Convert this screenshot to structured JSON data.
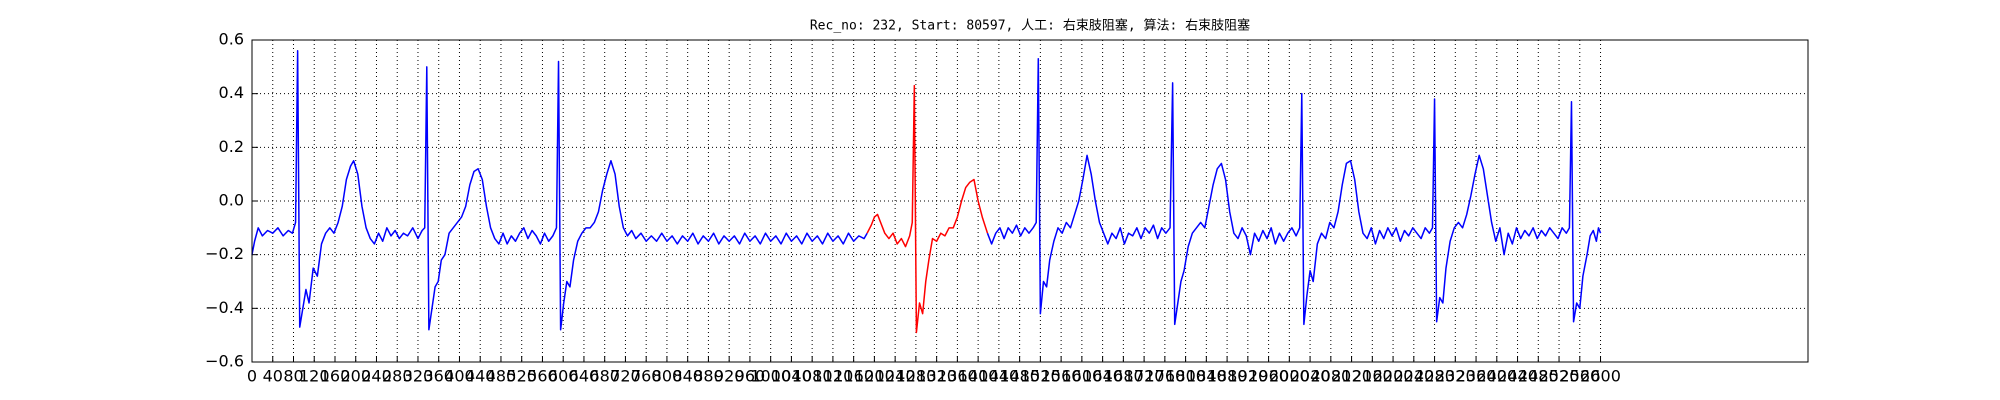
{
  "chart_data": {
    "type": "line",
    "title": "Rec_no: 232, Start: 80597, 人工: 右束肢阻塞, 算法: 右束肢阻塞",
    "xlim": [
      0,
      3000
    ],
    "xticks": [
      0,
      40,
      80,
      120,
      160,
      200,
      240,
      280,
      320,
      360,
      400,
      440,
      480,
      520,
      560,
      600,
      640,
      680,
      720,
      760,
      800,
      840,
      880,
      920,
      960,
      1000,
      1040,
      1080,
      1120,
      1160,
      1200,
      1240,
      1280,
      1320,
      1360,
      1400,
      1440,
      1480,
      1520,
      1560,
      1600,
      1640,
      1680,
      1720,
      1760,
      1800,
      1840,
      1880,
      1920,
      1960,
      2000,
      2040,
      2080,
      2120,
      2160,
      2200,
      2240,
      2280,
      2320,
      2360,
      2400,
      2440,
      2480,
      2520,
      2560,
      2600
    ],
    "ylim": [
      -0.6,
      0.6
    ],
    "yticks": [
      {
        "value": -0.6,
        "label": "−0.6"
      },
      {
        "value": -0.4,
        "label": "−0.4"
      },
      {
        "value": -0.2,
        "label": "−0.2"
      },
      {
        "value": 0,
        "label": "0.0"
      },
      0.2,
      0.4,
      0.6
    ],
    "grid": true,
    "series": [
      {
        "color": "#0000ff",
        "x": [
          0,
          5,
          12,
          20,
          30,
          40,
          50,
          60,
          70,
          78,
          84,
          88,
          92,
          98,
          104,
          110,
          118,
          126,
          134,
          142,
          150,
          158,
          166,
          174,
          182,
          190,
          196,
          204,
          212,
          220,
          228,
          236,
          244,
          252,
          260,
          268,
          276,
          284,
          292,
          300,
          310,
          320,
          328,
          333,
          337,
          341,
          347,
          353,
          359,
          365,
          372,
          380,
          388,
          396,
          404,
          412,
          420,
          428,
          436,
          444,
          452,
          460,
          468,
          476,
          484,
          492,
          500,
          508,
          516,
          524,
          532,
          540,
          548,
          556,
          564,
          572,
          580,
          587,
          591,
          595,
          601,
          607,
          613,
          620,
          628,
          636,
          644,
          652,
          660,
          668,
          676,
          684,
          692,
          700,
          708,
          716,
          724,
          732,
          740,
          750,
          760,
          770,
          780,
          790,
          800,
          810,
          820,
          830,
          840,
          850,
          860,
          870,
          880,
          890,
          900,
          910,
          920,
          930,
          940,
          950,
          960,
          970,
          980,
          990,
          1000,
          1010,
          1020,
          1030,
          1040,
          1050,
          1060,
          1070,
          1080,
          1090,
          1100,
          1110,
          1120,
          1130,
          1140,
          1150,
          1160,
          1170,
          1180,
          1186
        ],
        "values": [
          -0.2,
          -0.15,
          -0.1,
          -0.13,
          -0.11,
          -0.12,
          -0.1,
          -0.13,
          -0.11,
          -0.12,
          -0.08,
          0.56,
          -0.47,
          -0.4,
          -0.33,
          -0.38,
          -0.25,
          -0.28,
          -0.16,
          -0.12,
          -0.1,
          -0.12,
          -0.08,
          -0.02,
          0.08,
          0.13,
          0.15,
          0.1,
          -0.02,
          -0.1,
          -0.14,
          -0.16,
          -0.12,
          -0.15,
          -0.1,
          -0.13,
          -0.11,
          -0.14,
          -0.12,
          -0.13,
          -0.1,
          -0.14,
          -0.11,
          -0.1,
          0.5,
          -0.48,
          -0.4,
          -0.32,
          -0.3,
          -0.22,
          -0.2,
          -0.12,
          -0.1,
          -0.08,
          -0.06,
          -0.02,
          0.06,
          0.11,
          0.12,
          0.08,
          -0.02,
          -0.1,
          -0.14,
          -0.16,
          -0.12,
          -0.16,
          -0.13,
          -0.15,
          -0.12,
          -0.1,
          -0.14,
          -0.11,
          -0.13,
          -0.16,
          -0.12,
          -0.15,
          -0.13,
          -0.1,
          0.52,
          -0.48,
          -0.38,
          -0.3,
          -0.32,
          -0.22,
          -0.15,
          -0.12,
          -0.1,
          -0.1,
          -0.08,
          -0.04,
          0.04,
          0.1,
          0.15,
          0.1,
          -0.02,
          -0.1,
          -0.13,
          -0.11,
          -0.14,
          -0.12,
          -0.15,
          -0.13,
          -0.15,
          -0.12,
          -0.15,
          -0.13,
          -0.16,
          -0.13,
          -0.15,
          -0.12,
          -0.16,
          -0.13,
          -0.15,
          -0.12,
          -0.16,
          -0.13,
          -0.15,
          -0.13,
          -0.16,
          -0.12,
          -0.15,
          -0.13,
          -0.16,
          -0.12,
          -0.15,
          -0.13,
          -0.16,
          -0.12,
          -0.15,
          -0.13,
          -0.16,
          -0.12,
          -0.15,
          -0.13,
          -0.16,
          -0.12,
          -0.15,
          -0.13,
          -0.16,
          -0.12,
          -0.15,
          -0.13,
          -0.14,
          -0.12
        ]
      },
      {
        "color": "#ff0000",
        "x": [
          1186,
          1194,
          1200,
          1206,
          1212,
          1220,
          1228,
          1236,
          1244,
          1252,
          1260,
          1268,
          1273,
          1277,
          1281,
          1287,
          1293,
          1299,
          1305,
          1312,
          1320,
          1328,
          1336,
          1344,
          1352,
          1360,
          1368,
          1376,
          1384,
          1392,
          1400,
          1408,
          1418
        ],
        "values": [
          -0.12,
          -0.09,
          -0.06,
          -0.05,
          -0.08,
          -0.12,
          -0.14,
          -0.12,
          -0.16,
          -0.14,
          -0.17,
          -0.13,
          -0.08,
          0.43,
          -0.49,
          -0.38,
          -0.42,
          -0.3,
          -0.22,
          -0.14,
          -0.15,
          -0.12,
          -0.13,
          -0.1,
          -0.1,
          -0.06,
          0.0,
          0.05,
          0.07,
          0.08,
          0.0,
          -0.06,
          -0.12
        ]
      },
      {
        "color": "#0000ff",
        "x": [
          1418,
          1426,
          1434,
          1442,
          1450,
          1458,
          1466,
          1474,
          1482,
          1490,
          1498,
          1506,
          1512,
          1516,
          1520,
          1526,
          1532,
          1538,
          1546,
          1554,
          1562,
          1570,
          1578,
          1586,
          1594,
          1602,
          1610,
          1618,
          1626,
          1634,
          1642,
          1650,
          1658,
          1666,
          1674,
          1682,
          1690,
          1698,
          1706,
          1714,
          1722,
          1730,
          1738,
          1746,
          1754,
          1762,
          1770,
          1775,
          1779,
          1785,
          1791,
          1797,
          1805,
          1813,
          1821,
          1829,
          1837,
          1845,
          1853,
          1861,
          1869,
          1877,
          1885,
          1893,
          1901,
          1909,
          1917,
          1925,
          1933,
          1941,
          1949,
          1957,
          1965,
          1973,
          1981,
          1989,
          1997,
          2005,
          2013,
          2020,
          2024,
          2028,
          2034,
          2040,
          2046,
          2054,
          2062,
          2070,
          2078,
          2086,
          2094,
          2102,
          2110,
          2118,
          2126,
          2134,
          2142,
          2150,
          2158,
          2166,
          2174,
          2182,
          2190,
          2198,
          2206,
          2214,
          2222,
          2230,
          2238,
          2246,
          2254,
          2262,
          2270,
          2276,
          2280,
          2284,
          2290,
          2296,
          2302,
          2310,
          2318,
          2326,
          2334,
          2342,
          2350,
          2358,
          2366,
          2374,
          2382,
          2390,
          2398,
          2406,
          2414,
          2422,
          2430,
          2438,
          2446,
          2454,
          2462,
          2470,
          2478,
          2486,
          2494,
          2502,
          2510,
          2518,
          2526,
          2534,
          2540,
          2544,
          2548,
          2554,
          2560,
          2566,
          2574,
          2580,
          2586,
          2592,
          2596,
          2600
        ],
        "values": [
          -0.12,
          -0.16,
          -0.12,
          -0.1,
          -0.14,
          -0.1,
          -0.12,
          -0.09,
          -0.13,
          -0.1,
          -0.12,
          -0.1,
          -0.08,
          0.53,
          -0.42,
          -0.3,
          -0.32,
          -0.22,
          -0.15,
          -0.1,
          -0.12,
          -0.08,
          -0.1,
          -0.05,
          0.0,
          0.08,
          0.17,
          0.1,
          0.0,
          -0.08,
          -0.12,
          -0.16,
          -0.12,
          -0.14,
          -0.1,
          -0.16,
          -0.12,
          -0.13,
          -0.1,
          -0.14,
          -0.1,
          -0.12,
          -0.09,
          -0.14,
          -0.1,
          -0.12,
          -0.1,
          0.44,
          -0.46,
          -0.38,
          -0.3,
          -0.26,
          -0.17,
          -0.12,
          -0.1,
          -0.08,
          -0.1,
          -0.02,
          0.06,
          0.12,
          0.14,
          0.08,
          -0.04,
          -0.12,
          -0.14,
          -0.1,
          -0.13,
          -0.2,
          -0.12,
          -0.15,
          -0.11,
          -0.14,
          -0.1,
          -0.16,
          -0.12,
          -0.15,
          -0.12,
          -0.1,
          -0.13,
          -0.1,
          0.4,
          -0.46,
          -0.35,
          -0.26,
          -0.3,
          -0.16,
          -0.12,
          -0.14,
          -0.08,
          -0.1,
          -0.04,
          0.06,
          0.14,
          0.15,
          0.08,
          -0.04,
          -0.12,
          -0.14,
          -0.1,
          -0.16,
          -0.11,
          -0.14,
          -0.1,
          -0.13,
          -0.1,
          -0.15,
          -0.11,
          -0.13,
          -0.1,
          -0.12,
          -0.14,
          -0.1,
          -0.12,
          -0.1,
          0.38,
          -0.45,
          -0.36,
          -0.38,
          -0.25,
          -0.15,
          -0.1,
          -0.08,
          -0.1,
          -0.05,
          0.02,
          0.1,
          0.17,
          0.12,
          0.02,
          -0.08,
          -0.15,
          -0.1,
          -0.2,
          -0.12,
          -0.16,
          -0.1,
          -0.14,
          -0.11,
          -0.13,
          -0.1,
          -0.14,
          -0.11,
          -0.13,
          -0.1,
          -0.12,
          -0.14,
          -0.1,
          -0.12,
          -0.1,
          0.37,
          -0.45,
          -0.38,
          -0.4,
          -0.28,
          -0.2,
          -0.13,
          -0.11,
          -0.15,
          -0.1,
          -0.12
        ]
      }
    ]
  }
}
